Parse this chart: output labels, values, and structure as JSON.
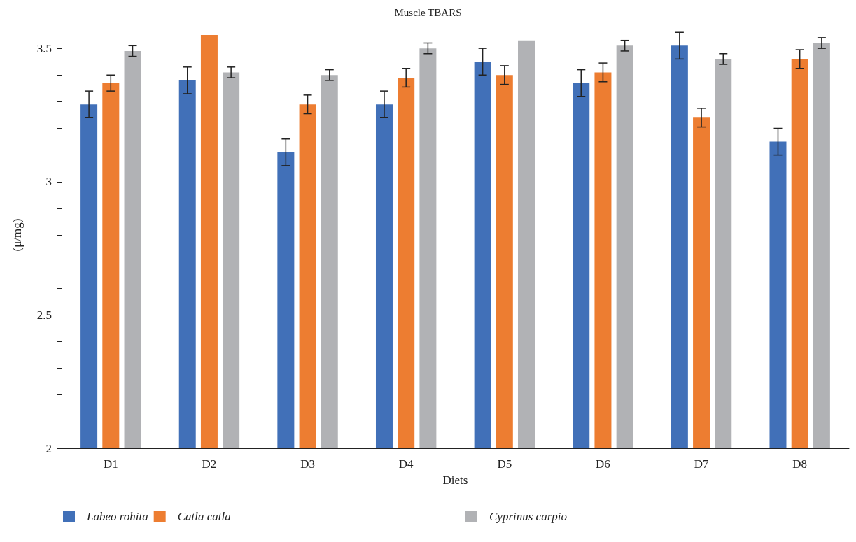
{
  "chart_data": {
    "type": "bar",
    "title": "Muscle TBARS",
    "xlabel": "Diets",
    "ylabel": "(μ/mg)",
    "categories": [
      "D1",
      "D2",
      "D3",
      "D4",
      "D5",
      "D6",
      "D7",
      "D8"
    ],
    "series": [
      {
        "name": "Labeo rohita",
        "color": "#4170b8",
        "values": [
          3.29,
          3.38,
          3.11,
          3.29,
          3.45,
          3.37,
          3.51,
          3.15
        ],
        "errors": [
          0.05,
          0.05,
          0.05,
          0.05,
          0.05,
          0.05,
          0.05,
          0.05
        ]
      },
      {
        "name": "Catla catla",
        "color": "#ed7d31",
        "values": [
          3.37,
          3.55,
          3.29,
          3.39,
          3.4,
          3.41,
          3.24,
          3.46
        ],
        "errors": [
          0.03,
          null,
          0.035,
          0.035,
          0.035,
          0.035,
          0.035,
          0.035
        ]
      },
      {
        "name": "Cyprinus carpio",
        "color": "#b1b2b5",
        "values": [
          3.49,
          3.41,
          3.4,
          3.5,
          3.53,
          3.51,
          3.46,
          3.52
        ],
        "errors": [
          0.02,
          0.02,
          0.02,
          0.02,
          null,
          0.02,
          0.02,
          0.02
        ]
      }
    ],
    "ylim": [
      2,
      3.6
    ],
    "yticks": [
      2,
      {
        "value": 2.1,
        "label": null
      },
      {
        "value": 2.2,
        "label": null
      },
      {
        "value": 2.3,
        "label": null
      },
      {
        "value": 2.4,
        "label": null
      },
      2.5,
      {
        "value": 2.6,
        "label": null
      },
      {
        "value": 2.7,
        "label": null
      },
      {
        "value": 2.8,
        "label": null
      },
      {
        "value": 2.9,
        "label": null
      },
      3,
      {
        "value": 3.1,
        "label": null
      },
      {
        "value": 3.2,
        "label": null
      },
      {
        "value": 3.3,
        "label": null
      },
      {
        "value": 3.4,
        "label": null
      },
      3.5,
      {
        "value": 3.6,
        "label": null
      }
    ],
    "grid": false,
    "legend": "bottom"
  }
}
